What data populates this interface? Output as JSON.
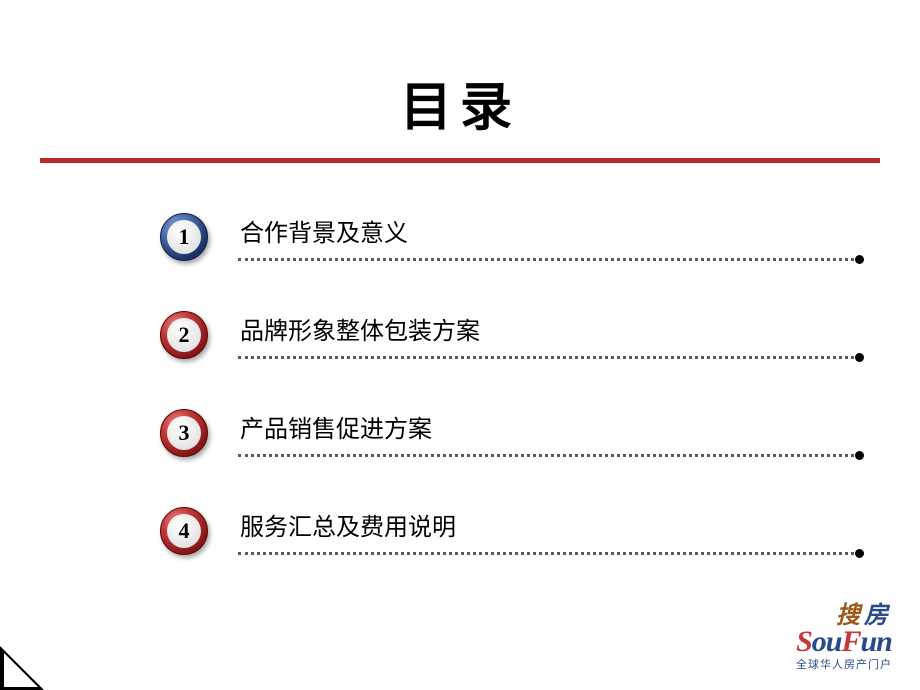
{
  "title": "目录",
  "title_underline_color": "#b82a2a",
  "toc": {
    "items": [
      {
        "number": "1",
        "label": "合作背景及意义",
        "badge_style": "blue"
      },
      {
        "number": "2",
        "label": "品牌形象整体包装方案",
        "badge_style": "red"
      },
      {
        "number": "3",
        "label": "产品销售促进方案",
        "badge_style": "red"
      },
      {
        "number": "4",
        "label": "服务汇总及费用说明",
        "badge_style": "red"
      }
    ],
    "label_fontsize": 24,
    "dotted_line_color": "#5a5a5a",
    "badge_colors": {
      "blue": {
        "outer": "#1a3668",
        "inner": "#ffffff"
      },
      "red": {
        "outer": "#8a1818",
        "inner": "#ffffff"
      }
    }
  },
  "logo": {
    "chinese": {
      "char1": "搜",
      "char2": "房"
    },
    "english_parts": {
      "p1": "S",
      "p2": "ou",
      "p3": "F",
      "p4": "un"
    },
    "subtitle": "全球华人房产门户",
    "colors": {
      "brown": "#9a5a1a",
      "navy": "#2a4a8a",
      "red": "#c43838"
    }
  },
  "background_color": "#ffffff",
  "text_color": "#000000"
}
